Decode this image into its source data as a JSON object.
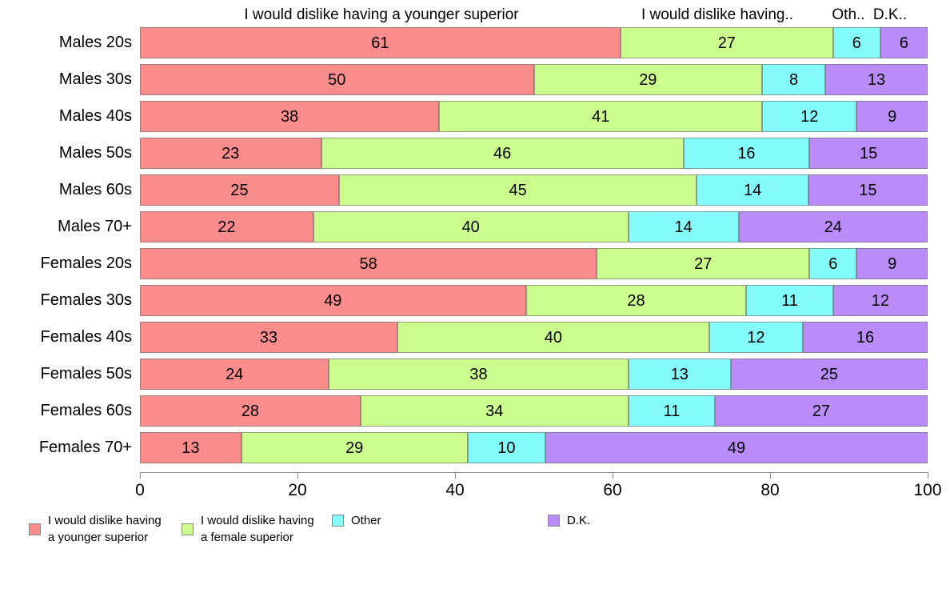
{
  "column_headers": [
    {
      "label": "I would dislike having a younger superior"
    },
    {
      "label": "I would dislike having.."
    },
    {
      "label": "Oth.."
    },
    {
      "label": "D.K.."
    }
  ],
  "chart_data": {
    "type": "bar",
    "orientation": "horizontal",
    "stacked": true,
    "title": "",
    "xlabel": "",
    "ylabel": "",
    "xlim": [
      0,
      100
    ],
    "x_ticks": [
      0,
      20,
      40,
      60,
      80,
      100
    ],
    "grid": false,
    "legend_position": "bottom",
    "categories": [
      "Males 20s",
      "Males 30s",
      "Males 40s",
      "Males 50s",
      "Males 60s",
      "Males 70+",
      "Females 20s",
      "Females 30s",
      "Females 40s",
      "Females 50s",
      "Females 60s",
      "Females 70+"
    ],
    "series": [
      {
        "name": "I would dislike having a younger superior",
        "color": "#FB8C8C",
        "values": [
          61,
          50,
          38,
          23,
          25,
          22,
          58,
          49,
          33,
          24,
          28,
          13
        ]
      },
      {
        "name": "I would dislike having a female superior",
        "color": "#CCFB8E",
        "values": [
          27,
          29,
          41,
          46,
          45,
          40,
          27,
          28,
          40,
          38,
          34,
          29
        ]
      },
      {
        "name": "Other",
        "color": "#85FCFC",
        "values": [
          6,
          8,
          12,
          16,
          14,
          14,
          6,
          11,
          12,
          13,
          11,
          10
        ]
      },
      {
        "name": "D.K.",
        "color": "#B98CFA",
        "values": [
          6,
          13,
          9,
          15,
          15,
          24,
          9,
          12,
          16,
          25,
          27,
          49
        ]
      }
    ],
    "legend": [
      {
        "label": "I would dislike having\na younger superior",
        "color": "#FB8C8C"
      },
      {
        "label": "I would dislike having\na female superior",
        "color": "#CCFB8E"
      },
      {
        "label": "Other",
        "color": "#85FCFC"
      },
      {
        "label": "D.K.",
        "color": "#B98CFA"
      }
    ]
  }
}
